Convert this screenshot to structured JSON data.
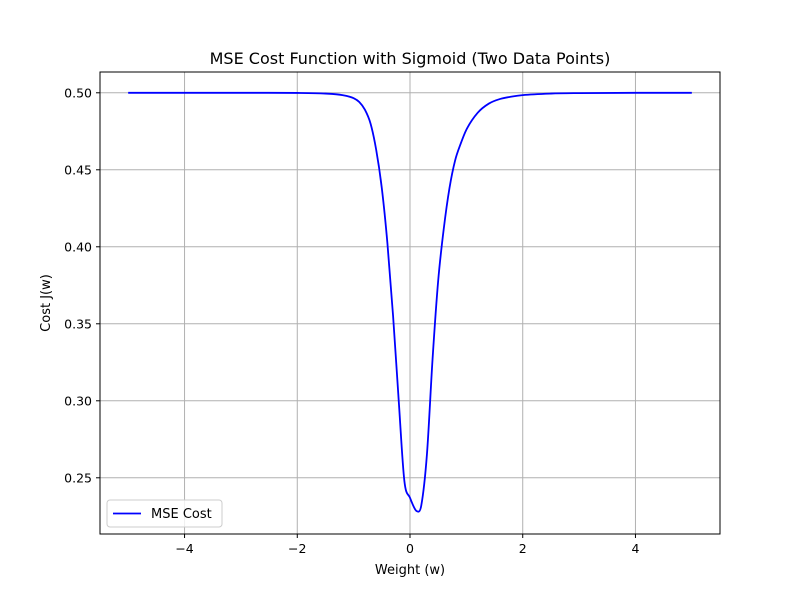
{
  "chart_data": {
    "type": "line",
    "title": "MSE Cost Function with Sigmoid (Two Data Points)",
    "xlabel": "Weight (w)",
    "ylabel": "Cost J(w)",
    "xlim": [
      -5.5,
      5.5
    ],
    "ylim": [
      0.2135,
      0.5135
    ],
    "x_ticks": [
      -4,
      -2,
      0,
      2,
      4
    ],
    "x_tick_labels": [
      "−4",
      "−2",
      "0",
      "2",
      "4"
    ],
    "y_ticks": [
      0.25,
      0.3,
      0.35,
      0.4,
      0.45,
      0.5
    ],
    "y_tick_labels": [
      "0.25",
      "0.30",
      "0.35",
      "0.40",
      "0.45",
      "0.50"
    ],
    "grid": true,
    "legend_position": "lower-left",
    "series": [
      {
        "name": "MSE Cost",
        "color": "#0000ff",
        "x": [
          -5.0,
          -3.0,
          -2.0,
          -1.5,
          -1.2,
          -1.0,
          -0.9,
          -0.8,
          -0.7,
          -0.6,
          -0.5,
          -0.4,
          -0.3,
          -0.2,
          -0.1,
          0.0,
          0.1,
          0.15,
          0.2,
          0.3,
          0.4,
          0.5,
          0.6,
          0.7,
          0.8,
          0.9,
          1.0,
          1.2,
          1.4,
          1.6,
          1.8,
          2.0,
          2.5,
          3.0,
          4.0,
          5.0
        ],
        "y": [
          0.5,
          0.5,
          0.4999,
          0.4995,
          0.4985,
          0.4965,
          0.494,
          0.489,
          0.48,
          0.463,
          0.438,
          0.402,
          0.355,
          0.3,
          0.248,
          0.237,
          0.229,
          0.228,
          0.232,
          0.265,
          0.327,
          0.378,
          0.412,
          0.438,
          0.456,
          0.467,
          0.476,
          0.487,
          0.493,
          0.496,
          0.4975,
          0.4985,
          0.4995,
          0.4998,
          0.5,
          0.5
        ]
      }
    ]
  }
}
